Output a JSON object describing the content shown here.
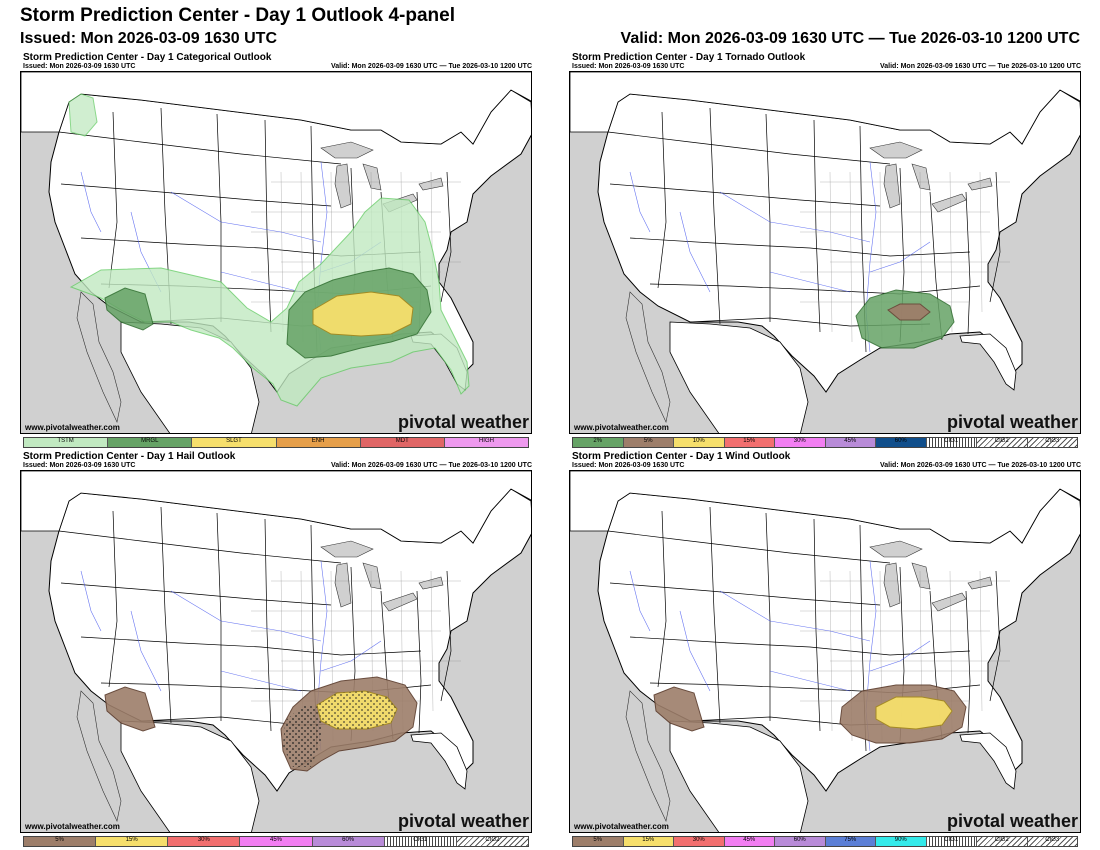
{
  "header": {
    "title": "Storm Prediction Center - Day 1 Outlook 4-panel",
    "issued": "Issued: Mon 2026-03-09 1630 UTC",
    "valid": "Valid: Mon 2026-03-09 1630 UTC — Tue 2026-03-10 1200 UTC"
  },
  "panels": [
    {
      "title": "Storm Prediction Center - Day 1 Categorical Outlook",
      "issued": "Issued: Mon 2026-03-09 1630 UTC",
      "valid": "Valid: Mon 2026-03-09 1630 UTC — Tue 2026-03-10 1200 UTC",
      "site": "www.pivotalweather.com",
      "brand": "pivotal weather",
      "risk_areas": [
        {
          "category": "TSTM",
          "region": "Pacific Northwest coast"
        },
        {
          "category": "TSTM",
          "region": "Desert Southwest, Southern Plains, Ohio Valley to Gulf Coast and Florida"
        },
        {
          "category": "MRGL",
          "region": "Arizona / New Mexico border"
        },
        {
          "category": "MRGL",
          "region": "Lower Mississippi Valley, Tennessee Valley, Ohio Valley"
        },
        {
          "category": "SLGT",
          "region": "Arkansas, northern Mississippi, Tennessee, northern Alabama"
        }
      ],
      "legend": [
        {
          "label": "TSTM",
          "color": "#c1e9c1"
        },
        {
          "label": "MRGL",
          "color": "#66a366"
        },
        {
          "label": "SLGT",
          "color": "#f6df6c"
        },
        {
          "label": "ENH",
          "color": "#e69f4a"
        },
        {
          "label": "MDT",
          "color": "#e06666"
        },
        {
          "label": "HIGH",
          "color": "#ee99ee"
        }
      ]
    },
    {
      "title": "Storm Prediction Center - Day 1 Tornado Outlook",
      "issued": "Issued: Mon 2026-03-09 1630 UTC",
      "valid": "Valid: Mon 2026-03-09 1630 UTC — Tue 2026-03-10 1200 UTC",
      "site": "www.pivotalweather.com",
      "brand": "pivotal weather",
      "risk_areas": [
        {
          "category": "2%",
          "region": "Arkansas, Mississippi, Tennessee, Alabama"
        },
        {
          "category": "5%",
          "region": "northern Mississippi / Tennessee border"
        }
      ],
      "legend": [
        {
          "label": "2%",
          "color": "#66a366"
        },
        {
          "label": "5%",
          "color": "#9d7e6a"
        },
        {
          "label": "10%",
          "color": "#f6df6c"
        },
        {
          "label": "15%",
          "color": "#f26f6f"
        },
        {
          "label": "30%",
          "color": "#f27ef2"
        },
        {
          "label": "45%",
          "color": "#b88bd8"
        },
        {
          "label": "60%",
          "color": "#104e8b"
        },
        {
          "label": "CIG1",
          "color": "hatch1"
        },
        {
          "label": "CIG2",
          "color": "hatch2"
        },
        {
          "label": "CIG3",
          "color": "hatch3"
        }
      ]
    },
    {
      "title": "Storm Prediction Center - Day 1 Hail Outlook",
      "issued": "Issued: Mon 2026-03-09 1630 UTC",
      "valid": "Valid: Mon 2026-03-09 1630 UTC — Tue 2026-03-10 1200 UTC",
      "site": "www.pivotalweather.com",
      "brand": "pivotal weather",
      "risk_areas": [
        {
          "category": "5%",
          "region": "Arizona / New Mexico border"
        },
        {
          "category": "5%",
          "region": "Lower Mississippi Valley to Tennessee Valley"
        },
        {
          "category": "15%",
          "region": "Arkansas, northern Mississippi, Tennessee"
        },
        {
          "category": "CIG1",
          "region": "Louisiana to Tennessee"
        }
      ],
      "legend": [
        {
          "label": "5%",
          "color": "#9d7e6a"
        },
        {
          "label": "15%",
          "color": "#f6df6c"
        },
        {
          "label": "30%",
          "color": "#f26f6f"
        },
        {
          "label": "45%",
          "color": "#f27ef2"
        },
        {
          "label": "60%",
          "color": "#b88bd8"
        },
        {
          "label": "CIG1",
          "color": "hatch1"
        },
        {
          "label": "CIG2",
          "color": "hatch2"
        }
      ]
    },
    {
      "title": "Storm Prediction Center - Day 1 Wind Outlook",
      "issued": "Issued: Mon 2026-03-09 1630 UTC",
      "valid": "Valid: Mon 2026-03-09 1630 UTC — Tue 2026-03-10 1200 UTC",
      "site": "www.pivotalweather.com",
      "brand": "pivotal weather",
      "risk_areas": [
        {
          "category": "5%",
          "region": "Arizona / New Mexico border"
        },
        {
          "category": "5%",
          "region": "Lower Mississippi Valley to Tennessee Valley"
        },
        {
          "category": "15%",
          "region": "northern Mississippi, Tennessee, northern Alabama"
        }
      ],
      "legend": [
        {
          "label": "5%",
          "color": "#9d7e6a"
        },
        {
          "label": "15%",
          "color": "#f6df6c"
        },
        {
          "label": "30%",
          "color": "#f26f6f"
        },
        {
          "label": "45%",
          "color": "#f27ef2"
        },
        {
          "label": "60%",
          "color": "#b88bd8"
        },
        {
          "label": "75%",
          "color": "#5b7fd6"
        },
        {
          "label": "90%",
          "color": "#33eaea"
        },
        {
          "label": "CIG1",
          "color": "hatch1"
        },
        {
          "label": "CIG2",
          "color": "hatch2"
        },
        {
          "label": "CIG3",
          "color": "hatch3"
        }
      ]
    }
  ]
}
